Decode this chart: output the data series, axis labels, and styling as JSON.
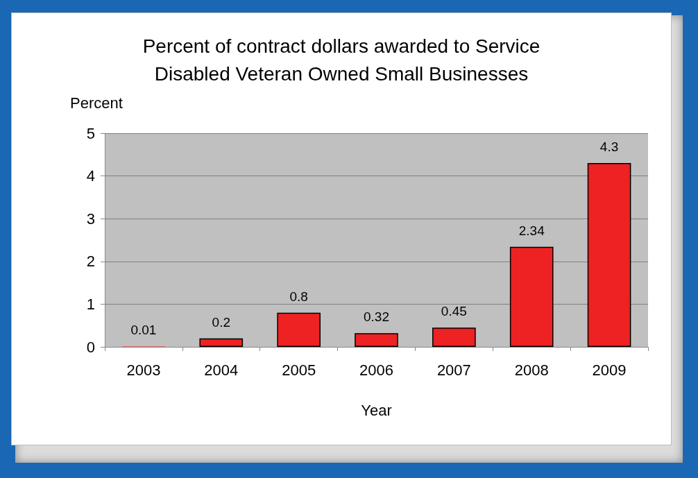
{
  "chart_data": {
    "type": "bar",
    "title": "Percent of contract dollars awarded to Service\nDisabled Veteran Owned Small Businesses",
    "xlabel": "Year",
    "ylabel": "Percent",
    "categories": [
      "2003",
      "2004",
      "2005",
      "2006",
      "2007",
      "2008",
      "2009"
    ],
    "values": [
      0.01,
      0.2,
      0.8,
      0.32,
      0.45,
      2.34,
      4.3
    ],
    "color": "#ee2222",
    "ylim": [
      0,
      5
    ],
    "yticks": [
      0,
      1,
      2,
      3,
      4,
      5
    ],
    "grid": "y",
    "data_labels": true
  }
}
